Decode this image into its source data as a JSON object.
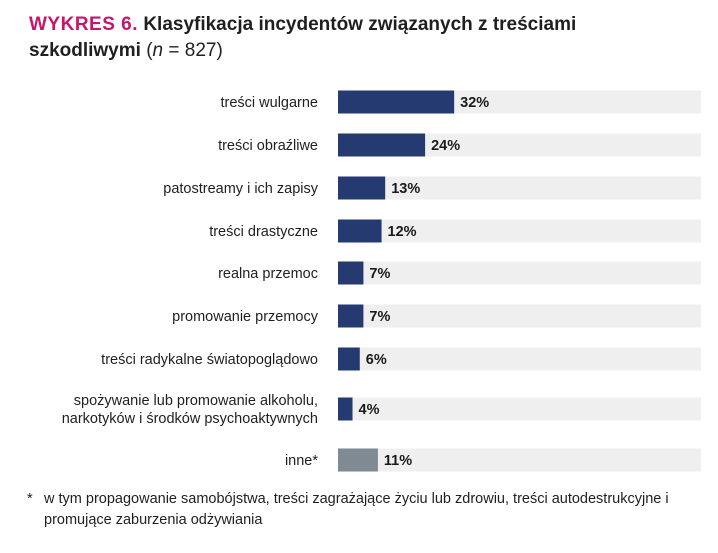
{
  "title": {
    "tag": "WYKRES 6.",
    "text_line1": "Klasyfikacja incydentów związanych z treściami",
    "text_line2": "szkodliwymi",
    "n_var": "n",
    "n_value": " = 827)",
    "open_paren": " ("
  },
  "chart_data": {
    "type": "bar",
    "orientation": "horizontal",
    "categories": [
      [
        "treści wulgarne"
      ],
      [
        "treści obraźliwe"
      ],
      [
        "patostreamy i ich zapisy"
      ],
      [
        "treści drastyczne"
      ],
      [
        "realna przemoc"
      ],
      [
        "promowanie przemocy"
      ],
      [
        "treści radykalne światopoglądowo"
      ],
      [
        "spożywanie lub promowanie alkoholu,",
        "narkotyków i środków psychoaktywnych"
      ],
      [
        "inne*"
      ]
    ],
    "values": [
      32,
      24,
      13,
      12,
      7,
      7,
      6,
      4,
      11
    ],
    "value_labels": [
      "32%",
      "24%",
      "13%",
      "12%",
      "7%",
      "7%",
      "6%",
      "4%",
      "11%"
    ],
    "max": 100,
    "colors": {
      "bar": "#243a70",
      "bar_other": "#7f8a93",
      "track": "#efefef"
    },
    "bar_colors": [
      "bar",
      "bar",
      "bar",
      "bar",
      "bar",
      "bar",
      "bar",
      "bar",
      "bar_other"
    ]
  },
  "footnote": {
    "marker": "*",
    "text": "w tym propagowanie samobójstwa, treści zagrażające życiu lub zdrowiu, treści autodestrukcyjne i promujące zaburzenia odżywiania"
  }
}
